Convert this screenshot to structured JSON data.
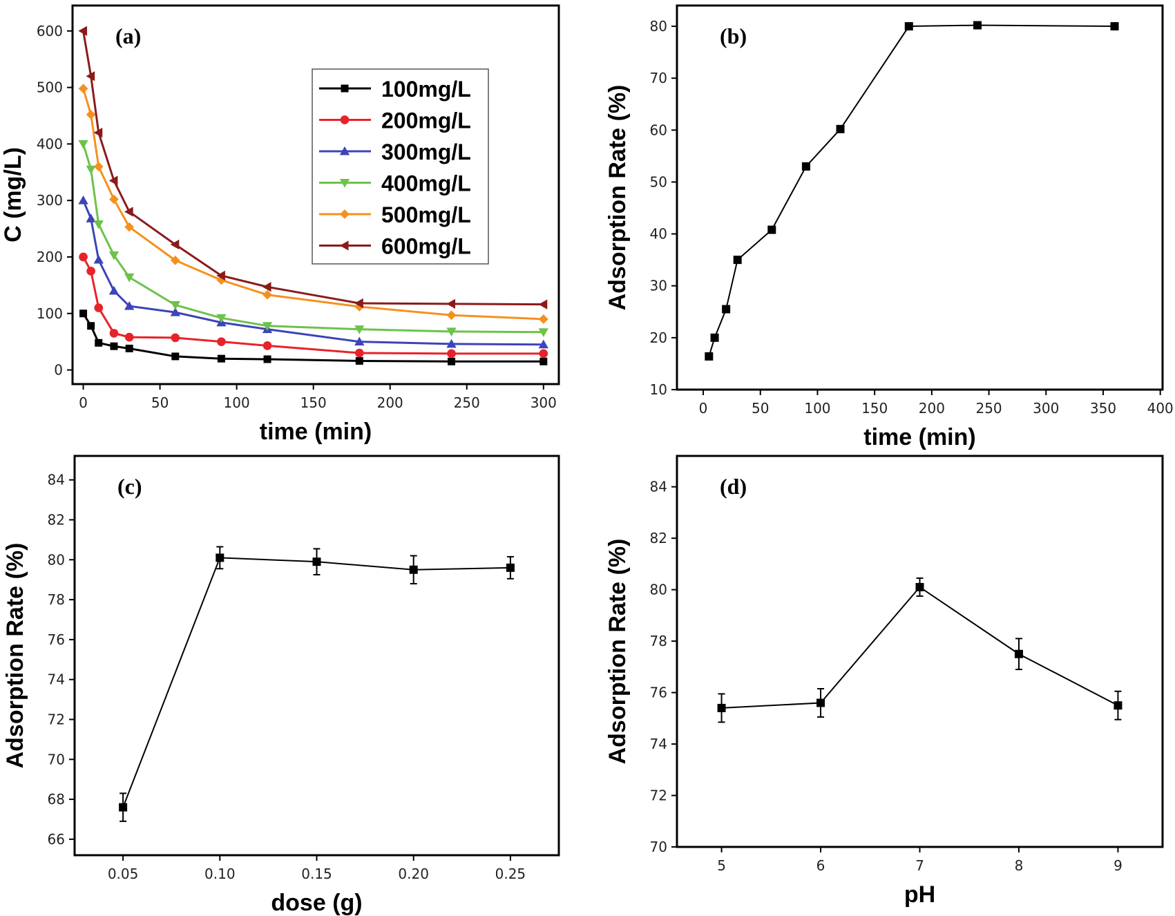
{
  "chart_data": [
    {
      "id": "a",
      "panel_label": "(a)",
      "type": "line",
      "xlabel": "time (min)",
      "ylabel": "C (mg/L)",
      "xlim": [
        -7,
        310
      ],
      "ylim": [
        -25,
        645
      ],
      "xticks": [
        0,
        50,
        100,
        150,
        200,
        250,
        300
      ],
      "yticks": [
        0,
        100,
        200,
        300,
        400,
        500,
        600
      ],
      "legend_position": "top-right",
      "series": [
        {
          "name": "100mg/L",
          "color": "#000000",
          "marker": "square",
          "x": [
            0,
            5,
            10,
            20,
            30,
            60,
            90,
            120,
            180,
            240,
            300
          ],
          "y": [
            100,
            78,
            48,
            42,
            38,
            24,
            20,
            19,
            16,
            15,
            15
          ]
        },
        {
          "name": "200mg/L",
          "color": "#e8222a",
          "marker": "circle",
          "x": [
            0,
            5,
            10,
            20,
            30,
            60,
            90,
            120,
            180,
            240,
            300
          ],
          "y": [
            200,
            175,
            110,
            65,
            58,
            57,
            50,
            43,
            30,
            29,
            29
          ]
        },
        {
          "name": "300mg/L",
          "color": "#3b44b8",
          "marker": "triangle-up",
          "x": [
            0,
            5,
            10,
            20,
            30,
            60,
            90,
            120,
            180,
            240,
            300
          ],
          "y": [
            300,
            268,
            195,
            140,
            113,
            102,
            84,
            72,
            50,
            46,
            45
          ]
        },
        {
          "name": "400mg/L",
          "color": "#6cc24a",
          "marker": "triangle-down",
          "x": [
            0,
            5,
            10,
            20,
            30,
            60,
            90,
            120,
            180,
            240,
            300
          ],
          "y": [
            400,
            355,
            258,
            203,
            164,
            115,
            92,
            78,
            72,
            68,
            67
          ]
        },
        {
          "name": "500mg/L",
          "color": "#f5901e",
          "marker": "diamond",
          "x": [
            0,
            5,
            10,
            20,
            30,
            60,
            90,
            120,
            180,
            240,
            300
          ],
          "y": [
            498,
            452,
            360,
            302,
            253,
            194,
            159,
            133,
            112,
            97,
            90
          ]
        },
        {
          "name": "600mg/L",
          "color": "#8b1a1a",
          "marker": "triangle-left",
          "x": [
            0,
            5,
            10,
            20,
            30,
            60,
            90,
            120,
            180,
            240,
            300
          ],
          "y": [
            600,
            520,
            420,
            335,
            280,
            222,
            167,
            147,
            118,
            117,
            116
          ]
        }
      ]
    },
    {
      "id": "b",
      "panel_label": "(b)",
      "type": "line",
      "xlabel": "time (min)",
      "ylabel": "Adsorption Rate (%)",
      "xlim": [
        -23,
        402
      ],
      "ylim": [
        10,
        84
      ],
      "xticks": [
        0,
        50,
        100,
        150,
        200,
        250,
        300,
        350,
        400
      ],
      "yticks": [
        10,
        20,
        30,
        40,
        50,
        60,
        70,
        80
      ],
      "series": [
        {
          "name": "adsorption rate",
          "color": "#000000",
          "marker": "square",
          "x": [
            5,
            10,
            20,
            30,
            60,
            90,
            120,
            180,
            240,
            360
          ],
          "y": [
            16.4,
            20,
            25.5,
            35,
            40.8,
            53,
            60.2,
            80,
            80.2,
            80
          ]
        }
      ]
    },
    {
      "id": "c",
      "panel_label": "(c)",
      "type": "line",
      "xlabel": "dose (g)",
      "ylabel": "Adsorption Rate (%)",
      "xlim": [
        0.025,
        0.275
      ],
      "ylim": [
        65.2,
        85.2
      ],
      "xticks": [
        0.05,
        0.1,
        0.15,
        0.2,
        0.25
      ],
      "xtick_labels": [
        "0.05",
        "0.10",
        "0.15",
        "0.20",
        "0.25"
      ],
      "yticks": [
        66,
        68,
        70,
        72,
        74,
        76,
        78,
        80,
        82,
        84
      ],
      "series": [
        {
          "name": "adsorption rate",
          "color": "#000000",
          "marker": "square",
          "x": [
            0.05,
            0.1,
            0.15,
            0.2,
            0.25
          ],
          "y": [
            67.6,
            80.1,
            79.9,
            79.5,
            79.6
          ],
          "err": [
            0.7,
            0.55,
            0.65,
            0.7,
            0.55
          ]
        }
      ]
    },
    {
      "id": "d",
      "panel_label": "(d)",
      "type": "line",
      "xlabel": "pH",
      "ylabel": "Adsorption Rate (%)",
      "xlim": [
        4.55,
        9.45
      ],
      "ylim": [
        70,
        85.2
      ],
      "xticks": [
        5,
        6,
        7,
        8,
        9
      ],
      "yticks": [
        70,
        72,
        74,
        76,
        78,
        80,
        82,
        84
      ],
      "series": [
        {
          "name": "adsorption rate",
          "color": "#000000",
          "marker": "square",
          "x": [
            5,
            6,
            7,
            8,
            9
          ],
          "y": [
            75.4,
            75.6,
            80.1,
            77.5,
            75.5
          ],
          "err": [
            0.55,
            0.55,
            0.35,
            0.6,
            0.55
          ]
        }
      ]
    }
  ]
}
